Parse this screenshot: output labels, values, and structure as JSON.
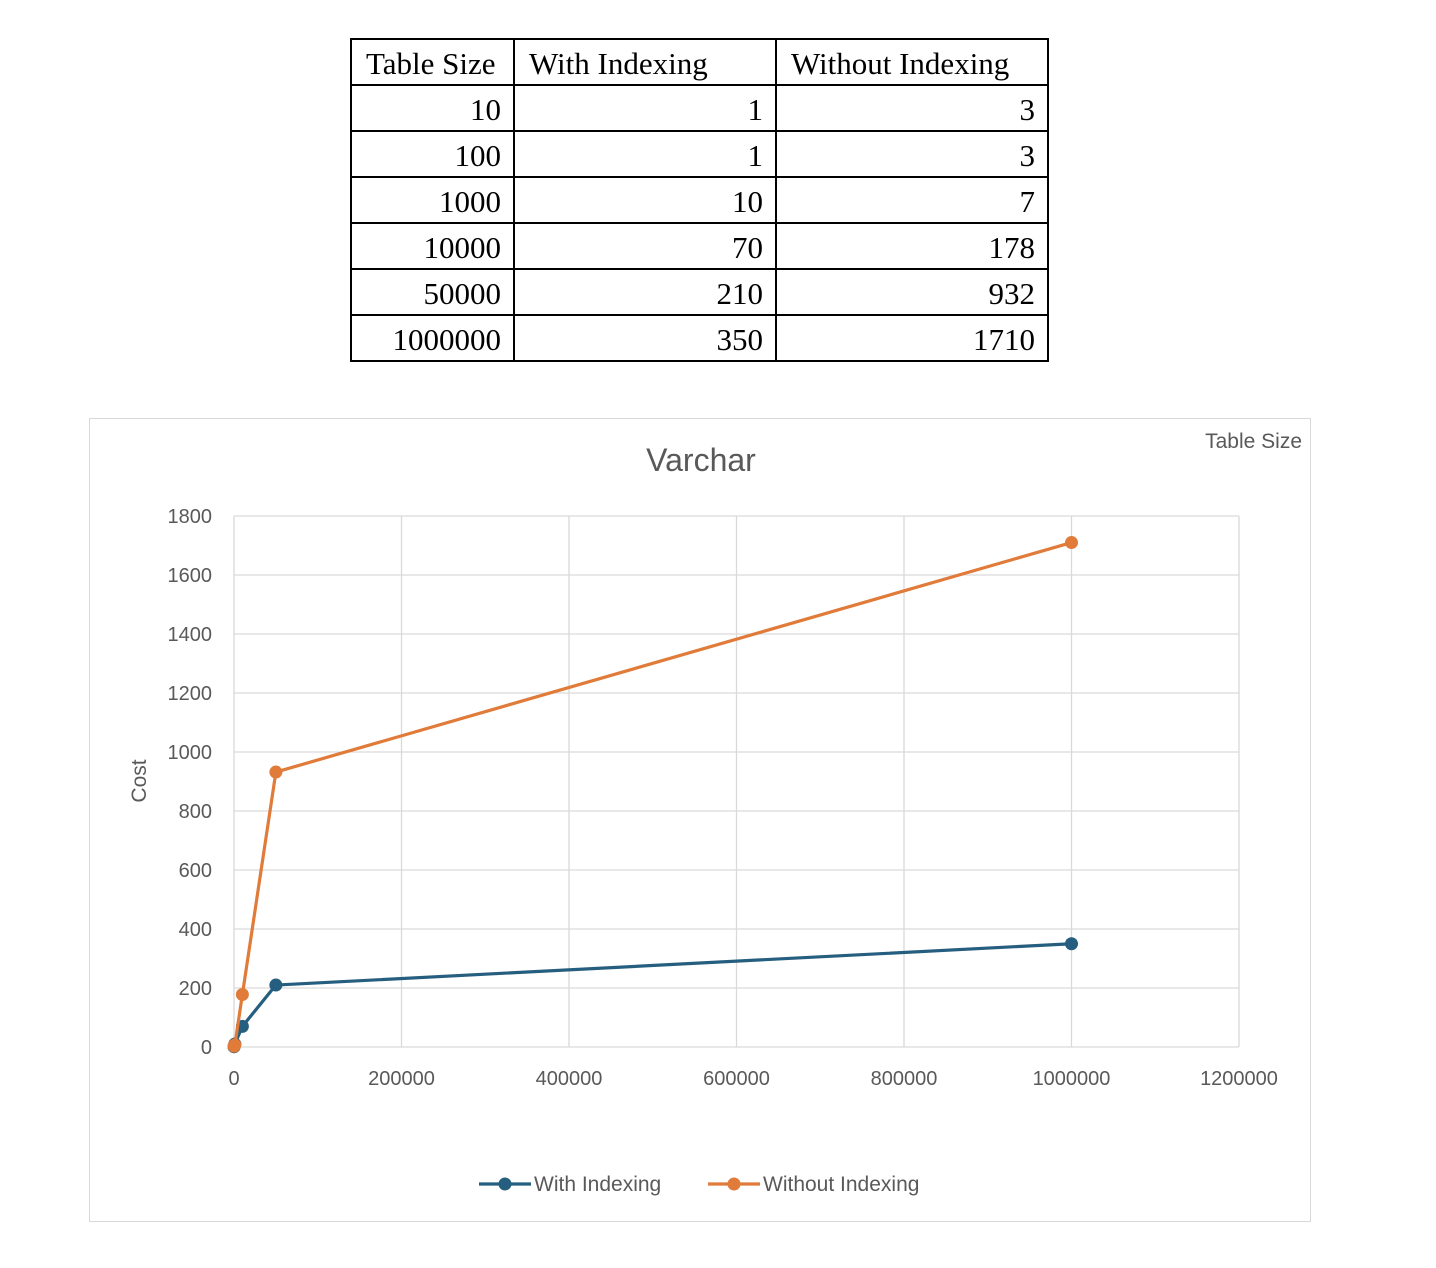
{
  "table": {
    "headers": [
      "Table Size",
      "With Indexing",
      "Without Indexing"
    ],
    "rows": [
      [
        "10",
        "1",
        "3"
      ],
      [
        "100",
        "1",
        "3"
      ],
      [
        "1000",
        "10",
        "7"
      ],
      [
        "10000",
        "70",
        "178"
      ],
      [
        "50000",
        "210",
        "932"
      ],
      [
        "1000000",
        "350",
        "1710"
      ]
    ]
  },
  "chart_data": {
    "type": "scatter",
    "title": "Varchar",
    "xlabel": "Table Size",
    "ylabel": "Cost",
    "xlim": [
      0,
      1200000
    ],
    "ylim": [
      0,
      1800
    ],
    "x_ticks": [
      0,
      200000,
      400000,
      600000,
      800000,
      1000000,
      1200000
    ],
    "y_ticks": [
      0,
      200,
      400,
      600,
      800,
      1000,
      1200,
      1400,
      1600,
      1800
    ],
    "grid": true,
    "legend_position": "bottom",
    "x": [
      10,
      100,
      1000,
      10000,
      50000,
      1000000
    ],
    "series": [
      {
        "name": "With Indexing",
        "color": "#255e7e",
        "values": [
          1,
          1,
          10,
          70,
          210,
          350
        ]
      },
      {
        "name": "Without Indexing",
        "color": "#e07b39",
        "values": [
          3,
          3,
          7,
          178,
          932,
          1710
        ]
      }
    ]
  }
}
